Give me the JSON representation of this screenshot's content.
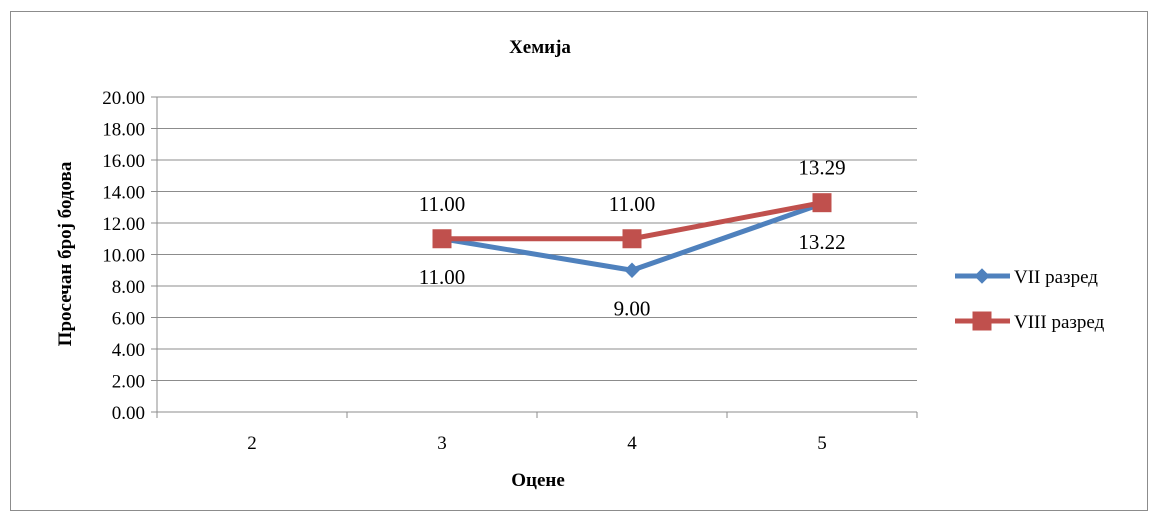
{
  "chart_data": {
    "type": "line",
    "title": "Хемија",
    "xlabel": "Оцене",
    "ylabel": "Просечан број бодова",
    "categories": [
      "2",
      "3",
      "4",
      "5"
    ],
    "ylim": [
      0,
      20
    ],
    "yticks": [
      "0.00",
      "2.00",
      "4.00",
      "6.00",
      "8.00",
      "10.00",
      "12.00",
      "14.00",
      "16.00",
      "18.00",
      "20.00"
    ],
    "grid": true,
    "legend_position": "right",
    "series": [
      {
        "name": "VII разред",
        "color": "#4f81bd",
        "marker": "diamond",
        "values": [
          null,
          11.0,
          9.0,
          13.22
        ],
        "labels": [
          null,
          "11.00",
          "9.00",
          "13.22"
        ],
        "label_position": "below"
      },
      {
        "name": "VIII разред",
        "color": "#c0504d",
        "marker": "square",
        "values": [
          null,
          11.0,
          11.0,
          13.29
        ],
        "labels": [
          null,
          "11.00",
          "11.00",
          "13.29"
        ],
        "label_position": "above"
      }
    ]
  }
}
